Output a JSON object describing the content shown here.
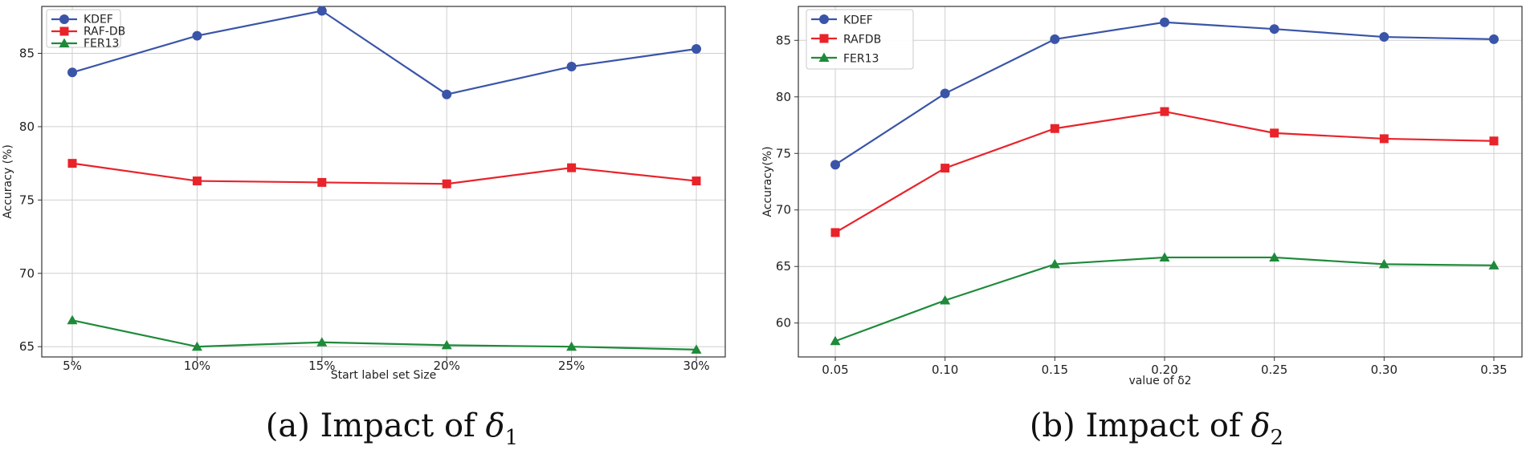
{
  "chart_data": [
    {
      "type": "line",
      "caption": "(a) Impact of δ1",
      "xlabel": "Start label set Size",
      "ylabel": "Accuracy (%)",
      "categories": [
        "5%",
        "10%",
        "15%",
        "20%",
        "25%",
        "30%"
      ],
      "ylim": [
        64.3,
        88.2
      ],
      "yticks": [
        65,
        70,
        75,
        80,
        85
      ],
      "grid": true,
      "legend_position": "top-left",
      "series": [
        {
          "name": "KDEF",
          "color": "#3a55a8",
          "marker": "circle",
          "values": [
            83.7,
            86.2,
            87.9,
            82.2,
            84.1,
            85.3
          ]
        },
        {
          "name": "RAF-DB",
          "color": "#e8232a",
          "marker": "square",
          "values": [
            77.5,
            76.3,
            76.2,
            76.1,
            77.2,
            76.3
          ]
        },
        {
          "name": "FER13",
          "color": "#1e8a3a",
          "marker": "triangle",
          "values": [
            66.8,
            65.0,
            65.3,
            65.1,
            65.0,
            64.8
          ]
        }
      ]
    },
    {
      "type": "line",
      "caption": "(b) Impact of δ2",
      "xlabel": "value of δ2",
      "ylabel": "Accuracy(%)",
      "categories": [
        "0.05",
        "0.10",
        "0.15",
        "0.20",
        "0.25",
        "0.30",
        "0.35"
      ],
      "ylim": [
        57.0,
        88.0
      ],
      "yticks": [
        60,
        65,
        70,
        75,
        80,
        85
      ],
      "grid": true,
      "legend_position": "top-left",
      "series": [
        {
          "name": "KDEF",
          "color": "#3a55a8",
          "marker": "circle",
          "values": [
            74.0,
            80.3,
            85.1,
            86.6,
            86.0,
            85.3,
            85.1
          ]
        },
        {
          "name": "RAFDB",
          "color": "#e8232a",
          "marker": "square",
          "values": [
            68.0,
            73.7,
            77.2,
            78.7,
            76.8,
            76.3,
            76.1
          ]
        },
        {
          "name": "FER13",
          "color": "#1e8a3a",
          "marker": "triangle",
          "values": [
            58.4,
            62.0,
            65.2,
            65.8,
            65.8,
            65.2,
            65.1
          ]
        }
      ]
    }
  ]
}
